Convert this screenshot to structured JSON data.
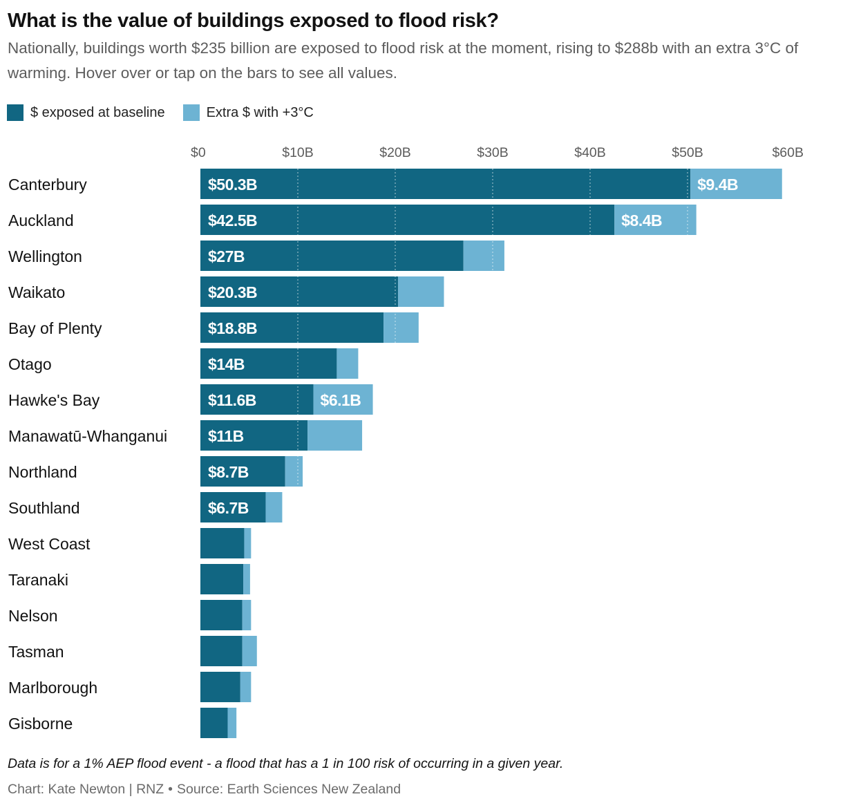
{
  "header": {
    "title": "What is the value of buildings exposed to flood risk?",
    "subtitle": "Nationally, buildings worth $235 billion are exposed to flood risk at the moment, rising to $288b with an extra 3°C of warming. Hover over or tap on the bars to see all values."
  },
  "legend": {
    "items": [
      {
        "label": "$ exposed at baseline",
        "color": "#116682"
      },
      {
        "label": "Extra $ with +3°C",
        "color": "#6db3d3"
      }
    ]
  },
  "footer": {
    "note": "Data is for a 1% AEP flood event - a flood that has a 1 in 100 risk of occurring in a given year.",
    "credit": "Chart: Kate Newton | RNZ",
    "separator": "•",
    "source": "Source: Earth Sciences New Zealand"
  },
  "chart_data": {
    "type": "bar",
    "orientation": "horizontal",
    "stacked": true,
    "title": "What is the value of buildings exposed to flood risk?",
    "xlabel": "",
    "ylabel": "",
    "xlim": [
      0,
      60
    ],
    "unit": "billion NZD",
    "x_ticks": [
      0,
      10,
      20,
      30,
      40,
      50,
      60
    ],
    "x_tick_labels": [
      "$0",
      "$10B",
      "$20B",
      "$30B",
      "$40B",
      "$50B",
      "$60B"
    ],
    "grid": "vertical dotted",
    "legend_position": "top-left",
    "categories": [
      "Canterbury",
      "Auckland",
      "Wellington",
      "Waikato",
      "Bay of Plenty",
      "Otago",
      "Hawke's Bay",
      "Manawatū-Whanganui",
      "Northland",
      "Southland",
      "West Coast",
      "Taranaki",
      "Nelson",
      "Tasman",
      "Marlborough",
      "Gisborne"
    ],
    "series": [
      {
        "name": "$ exposed at baseline",
        "color": "#116682",
        "values": [
          50.3,
          42.5,
          27,
          20.3,
          18.8,
          14,
          11.6,
          11,
          8.7,
          6.7,
          4.5,
          4.4,
          4.3,
          4.3,
          4.1,
          2.8
        ],
        "labels": [
          "$50.3B",
          "$42.5B",
          "$27B",
          "$20.3B",
          "$18.8B",
          "$14B",
          "$11.6B",
          "$11B",
          "$8.7B",
          "$6.7B",
          "",
          "",
          "",
          "",
          "",
          ""
        ]
      },
      {
        "name": "Extra $ with +3°C",
        "color": "#6db3d3",
        "values": [
          9.4,
          8.4,
          4.2,
          4.7,
          3.6,
          2.2,
          6.1,
          5.6,
          1.8,
          1.7,
          0.7,
          0.7,
          0.9,
          1.5,
          1.1,
          0.9
        ],
        "labels": [
          "$9.4B",
          "$8.4B",
          "",
          "",
          "",
          "",
          "$6.1B",
          "",
          "",
          "",
          "",
          "",
          "",
          "",
          "",
          ""
        ]
      }
    ]
  }
}
